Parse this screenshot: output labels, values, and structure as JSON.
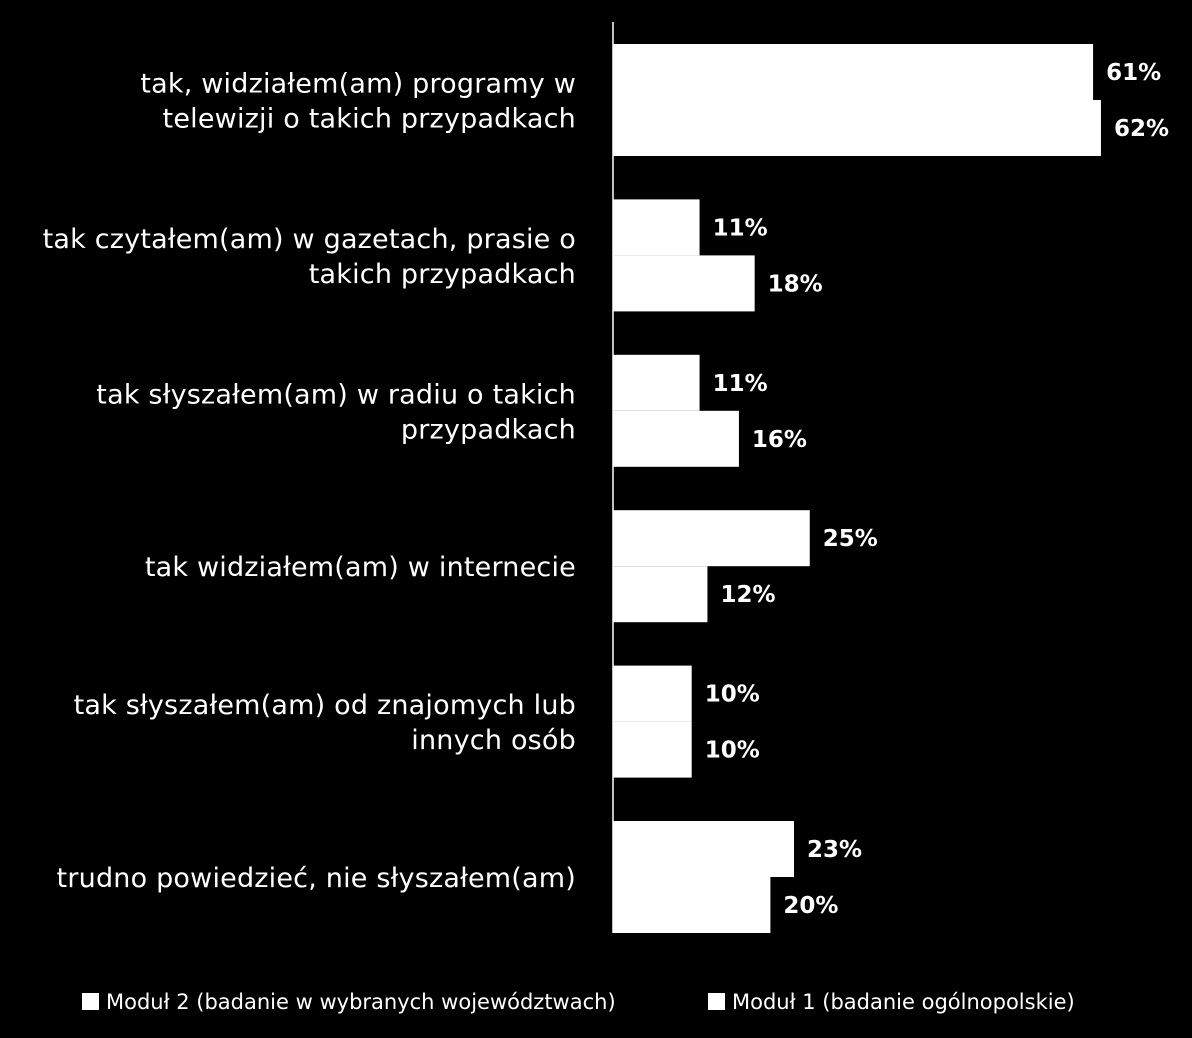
{
  "chart_data": {
    "type": "bar",
    "orientation": "horizontal",
    "categories": [
      [
        "tak, widziałem(am) programy w",
        "telewizji o takich przypadkach"
      ],
      [
        "tak czytałem(am) w gazetach, prasie o",
        "takich przypadkach"
      ],
      [
        "tak słyszałem(am) w radiu o takich",
        "przypadkach"
      ],
      [
        "tak widziałem(am) w internecie"
      ],
      [
        "tak słyszałem(am) od znajomych lub",
        "innych osób"
      ],
      [
        "trudno powiedzieć, nie słyszałem(am)"
      ]
    ],
    "series": [
      {
        "name": "Moduł 2 (badanie w wybranych województwach)",
        "values": [
          61,
          11,
          11,
          25,
          10,
          23
        ],
        "labels": [
          "61%",
          "11%",
          "11%",
          "25%",
          "10%",
          "23%"
        ],
        "color": "#ffffff"
      },
      {
        "name": "Moduł 1 (badanie ogólnopolskie)",
        "values": [
          62,
          18,
          16,
          12,
          10,
          20
        ],
        "labels": [
          "62%",
          "18%",
          "16%",
          "12%",
          "10%",
          "20%"
        ],
        "color": "#ffffff"
      }
    ],
    "xlim": [
      0,
      62
    ],
    "grid": false,
    "legend_position": "bottom",
    "background": "#000000"
  }
}
